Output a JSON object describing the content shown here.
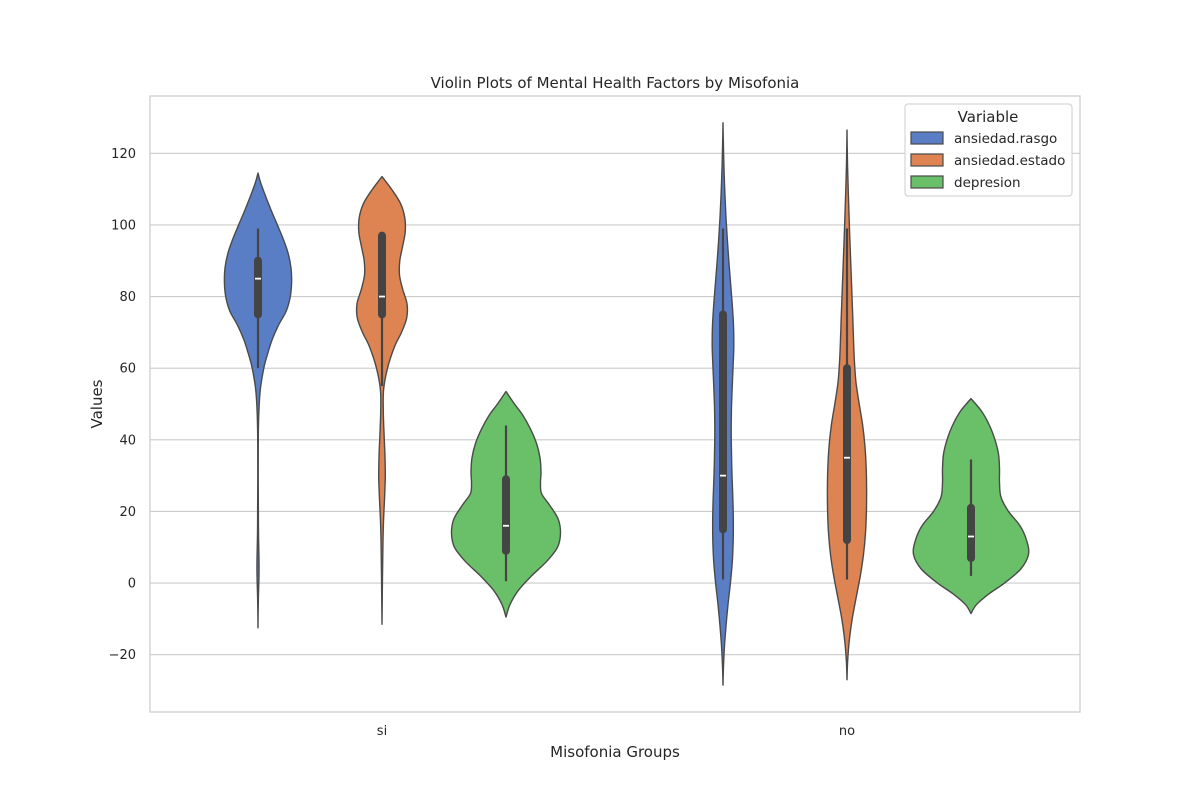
{
  "chart_data": {
    "type": "violin",
    "title": "Violin Plots of Mental Health Factors by Misofonia",
    "xlabel": "Misofonia Groups",
    "ylabel": "Values",
    "categories": [
      "si",
      "no"
    ],
    "ylim": [
      -36,
      136
    ],
    "yticks": [
      -20,
      0,
      20,
      40,
      60,
      80,
      100,
      120
    ],
    "grid": "horizontal",
    "legend": {
      "title": "Variable",
      "placement": "top-right"
    },
    "series": [
      {
        "name": "ansiedad.rasgo",
        "color": "#5A7EC6",
        "groups": [
          {
            "category": "si",
            "extent": [
              -12.5,
              114.5
            ],
            "whisker": [
              60,
              99
            ],
            "q1": 75,
            "median": 85,
            "q3": 90,
            "density": [
              [
                -12.5,
                0
              ],
              [
                -8,
                0.15
              ],
              [
                -4,
                0.4
              ],
              [
                0,
                0.8
              ],
              [
                4,
                1.05
              ],
              [
                8,
                0.9
              ],
              [
                12,
                0.6
              ],
              [
                16,
                0.42
              ],
              [
                20,
                0.38
              ],
              [
                24,
                0.3
              ],
              [
                30,
                0.22
              ],
              [
                36,
                0.24
              ],
              [
                42,
                0.35
              ],
              [
                48,
                0.9
              ],
              [
                54,
                2.3
              ],
              [
                60,
                5.8
              ],
              [
                64,
                9.6
              ],
              [
                68,
                14.2
              ],
              [
                72,
                20.5
              ],
              [
                76,
                28.3
              ],
              [
                80,
                32.3
              ],
              [
                84,
                33.6
              ],
              [
                88,
                33.0
              ],
              [
                92,
                30.2
              ],
              [
                96,
                25.3
              ],
              [
                100,
                19.4
              ],
              [
                104,
                13.3
              ],
              [
                108,
                7.6
              ],
              [
                112,
                2.4
              ],
              [
                114.5,
                0
              ]
            ]
          },
          {
            "category": "no",
            "extent": [
              -28.5,
              128.5
            ],
            "whisker": [
              1,
              99
            ],
            "q1": 15,
            "median": 30,
            "q3": 75,
            "density": [
              [
                -28.5,
                0
              ],
              [
                -24,
                0.4
              ],
              [
                -18,
                1.4
              ],
              [
                -12,
                3.0
              ],
              [
                -6,
                5.0
              ],
              [
                0,
                7.4
              ],
              [
                6,
                9.3
              ],
              [
                12,
                10.2
              ],
              [
                18,
                10.3
              ],
              [
                24,
                9.8
              ],
              [
                30,
                9.0
              ],
              [
                36,
                8.5
              ],
              [
                42,
                8.2
              ],
              [
                48,
                8.4
              ],
              [
                54,
                9.1
              ],
              [
                60,
                10.0
              ],
              [
                66,
                10.8
              ],
              [
                72,
                10.5
              ],
              [
                78,
                9.2
              ],
              [
                84,
                7.5
              ],
              [
                90,
                5.8
              ],
              [
                96,
                4.3
              ],
              [
                102,
                3.0
              ],
              [
                108,
                2.0
              ],
              [
                114,
                1.2
              ],
              [
                120,
                0.6
              ],
              [
                125,
                0.2
              ],
              [
                128.5,
                0
              ]
            ]
          }
        ]
      },
      {
        "name": "ansiedad.estado",
        "color": "#DD8452",
        "groups": [
          {
            "category": "si",
            "extent": [
              -11.5,
              113.5
            ],
            "whisker": [
              55,
              98
            ],
            "q1": 75,
            "median": 80,
            "q3": 97,
            "density": [
              [
                -11.5,
                0
              ],
              [
                -6,
                0.2
              ],
              [
                0,
                0.4
              ],
              [
                6,
                0.7
              ],
              [
                12,
                1.0
              ],
              [
                18,
                1.6
              ],
              [
                24,
                2.6
              ],
              [
                30,
                3.3
              ],
              [
                36,
                2.9
              ],
              [
                42,
                2.0
              ],
              [
                48,
                1.3
              ],
              [
                54,
                1.6
              ],
              [
                60,
                5.5
              ],
              [
                66,
                12.5
              ],
              [
                70,
                19.5
              ],
              [
                74,
                24.7
              ],
              [
                78,
                25.0
              ],
              [
                82,
                20.7
              ],
              [
                86,
                17.5
              ],
              [
                90,
                17.8
              ],
              [
                94,
                20.6
              ],
              [
                98,
                23.2
              ],
              [
                102,
                22.8
              ],
              [
                106,
                18.5
              ],
              [
                110,
                9.5
              ],
              [
                113.5,
                0
              ]
            ]
          },
          {
            "category": "no",
            "extent": [
              -27,
              126.5
            ],
            "whisker": [
              1,
              99
            ],
            "q1": 12,
            "median": 35,
            "q3": 60,
            "density": [
              [
                -27,
                0
              ],
              [
                -22,
                0.6
              ],
              [
                -16,
                2.3
              ],
              [
                -10,
                5.2
              ],
              [
                -4,
                9.2
              ],
              [
                2,
                13.3
              ],
              [
                8,
                16.5
              ],
              [
                14,
                18.5
              ],
              [
                20,
                19.4
              ],
              [
                26,
                19.6
              ],
              [
                32,
                19.2
              ],
              [
                38,
                18.0
              ],
              [
                44,
                15.7
              ],
              [
                50,
                12.2
              ],
              [
                56,
                9.0
              ],
              [
                62,
                7.4
              ],
              [
                68,
                6.5
              ],
              [
                74,
                5.8
              ],
              [
                80,
                5.0
              ],
              [
                86,
                4.2
              ],
              [
                92,
                3.4
              ],
              [
                98,
                2.6
              ],
              [
                104,
                1.9
              ],
              [
                110,
                1.2
              ],
              [
                116,
                0.6
              ],
              [
                122,
                0.2
              ],
              [
                126.5,
                0
              ]
            ]
          }
        ]
      },
      {
        "name": "depresion",
        "color": "#6ABF69",
        "groups": [
          {
            "category": "si",
            "extent": [
              -9.5,
              53.5
            ],
            "whisker": [
              0.5,
              44
            ],
            "q1": 9,
            "median": 16,
            "q3": 29,
            "density": [
              [
                -9.5,
                0
              ],
              [
                -6,
                4.0
              ],
              [
                -2,
                12.5
              ],
              [
                2,
                25.5
              ],
              [
                6,
                40.5
              ],
              [
                10,
                51.5
              ],
              [
                14,
                54.5
              ],
              [
                18,
                52.0
              ],
              [
                22,
                43.0
              ],
              [
                25,
                35.5
              ],
              [
                28,
                34.5
              ],
              [
                31,
                35.0
              ],
              [
                35,
                34.0
              ],
              [
                39,
                30.5
              ],
              [
                43,
                24.5
              ],
              [
                47,
                16.5
              ],
              [
                50,
                8.5
              ],
              [
                53.5,
                0
              ]
            ]
          },
          {
            "category": "no",
            "extent": [
              -8.5,
              51.5
            ],
            "whisker": [
              2,
              34.5
            ],
            "q1": 7,
            "median": 13,
            "q3": 21,
            "density": [
              [
                -8.5,
                0
              ],
              [
                -6,
                5.5
              ],
              [
                -3,
                18.0
              ],
              [
                0,
                33.5
              ],
              [
                4,
                50.0
              ],
              [
                8,
                57.5
              ],
              [
                12,
                55.5
              ],
              [
                16,
                49.0
              ],
              [
                20,
                37.5
              ],
              [
                24,
                30.0
              ],
              [
                28,
                28.5
              ],
              [
                32,
                28.5
              ],
              [
                36,
                27.5
              ],
              [
                40,
                24.0
              ],
              [
                44,
                18.5
              ],
              [
                48,
                10.5
              ],
              [
                51.5,
                0
              ]
            ]
          }
        ]
      }
    ]
  }
}
